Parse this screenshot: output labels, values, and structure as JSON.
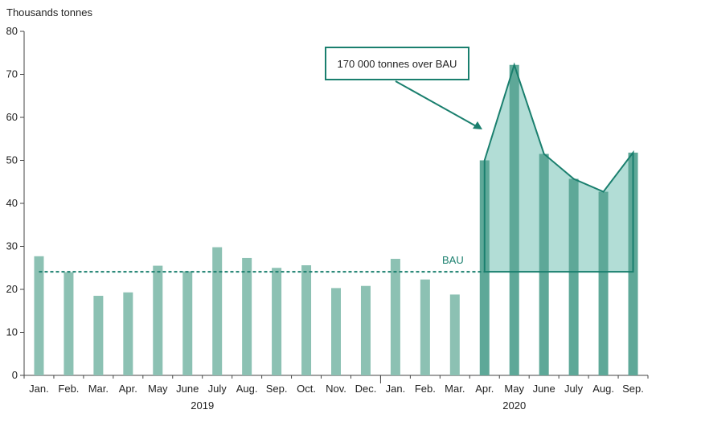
{
  "chart_data": {
    "type": "bar",
    "ylabel": "Thousands tonnes",
    "ylim": [
      0,
      80
    ],
    "yticks": [
      0,
      10,
      20,
      30,
      40,
      50,
      60,
      70,
      80
    ],
    "categories": [
      "Jan.",
      "Feb.",
      "Mar.",
      "Apr.",
      "May",
      "June",
      "July",
      "Aug.",
      "Sep.",
      "Oct.",
      "Nov.",
      "Dec.",
      "Jan.",
      "Feb.",
      "Mar.",
      "Apr.",
      "May",
      "June",
      "July",
      "Aug.",
      "Sep."
    ],
    "year_groups": [
      {
        "label": "2019",
        "start": 0,
        "end": 11
      },
      {
        "label": "2020",
        "start": 12,
        "end": 20
      }
    ],
    "series": [
      {
        "values": [
          27.7,
          24.0,
          18.5,
          19.3,
          25.5,
          24.2,
          29.8,
          27.3,
          25.0,
          25.6,
          20.3,
          20.8,
          27.1,
          22.3,
          18.8,
          50.0,
          72.2,
          51.5,
          45.7,
          42.7,
          51.8
        ]
      }
    ],
    "bau": {
      "label": "BAU",
      "value": 24.1,
      "style": "dashed"
    },
    "excess_area": {
      "start": 15,
      "end": 20,
      "fill": "#b2ddd6",
      "stroke": "#1a7f6e"
    },
    "colors": {
      "bar": "#8cc1b3",
      "bar_highlight": "#5ea898",
      "line": "#1a7f6e"
    }
  },
  "annotation": {
    "text": "170 000 tonnes over BAU"
  }
}
